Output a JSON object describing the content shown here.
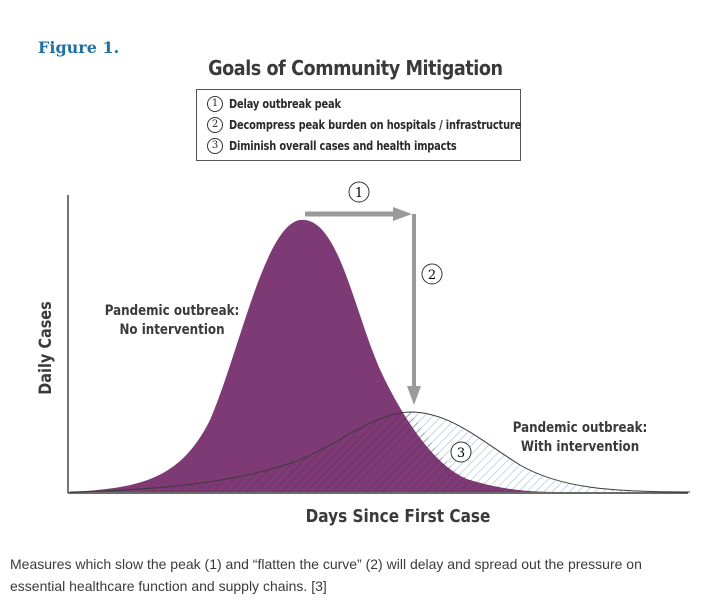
{
  "figure_label": "Figure 1.",
  "title": "Goals of Community Mitigation",
  "legend": [
    {
      "number": "1",
      "text": "Delay outbreak peak"
    },
    {
      "number": "2",
      "text": "Decompress peak burden on hospitals / infrastructure"
    },
    {
      "number": "3",
      "text": "Diminish overall cases and health impacts"
    }
  ],
  "axes": {
    "y_label": "Daily Cases",
    "x_label": "Days Since First Case"
  },
  "curves": {
    "no_intervention_label_line1": "Pandemic outbreak:",
    "no_intervention_label_line2": "No intervention",
    "with_intervention_label_line1": "Pandemic outbreak:",
    "with_intervention_label_line2": "With intervention"
  },
  "markers": {
    "m1": "1",
    "m2": "2",
    "m3": "3"
  },
  "colors": {
    "no_intervention_fill": "#7d3a75",
    "arrow_gray": "#9a9a9a",
    "figure_label_blue": "#1f6fa8"
  },
  "caption": "Measures which slow the peak (1) and “flatten the curve” (2) will delay and spread out the pressure on essential healthcare function and supply chains. [3]"
}
